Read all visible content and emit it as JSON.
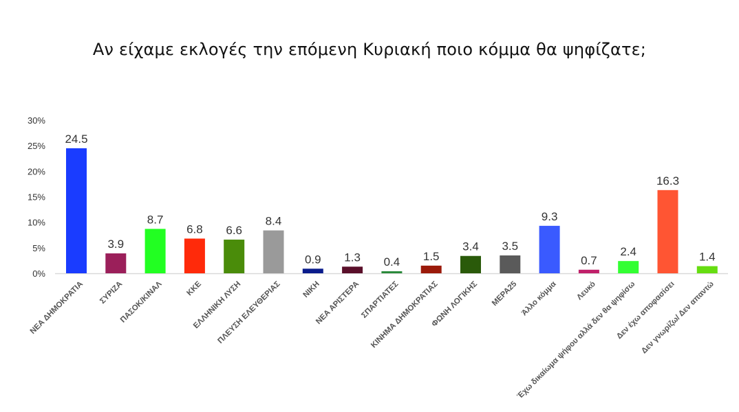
{
  "chart_data": {
    "type": "bar",
    "title": "Αν είχαμε εκλογές την επόμενη Κυριακή ποιο κόμμα θα ψηφίζατε;",
    "xlabel": "",
    "ylabel": "",
    "ylim": [
      0,
      30
    ],
    "yticks": [
      0,
      5,
      10,
      15,
      20,
      25,
      30
    ],
    "ytick_labels": [
      "0%",
      "5%",
      "10%",
      "15%",
      "20%",
      "25%",
      "30%"
    ],
    "grid": false,
    "categories": [
      "ΝΕΑ ΔΗΜΟΚΡΑΤΙΑ",
      "ΣΥΡΙΖΑ",
      "ΠΑΣΟΚ/ΚΙΝΑΛ",
      "ΚΚΕ",
      "ΕΛΛΗΝΙΚΗ ΛΥΣΗ",
      "ΠΛΕΥΣΗ ΕΛΕΥΘΕΡΙΑΣ",
      "ΝΙΚΗ",
      "ΝΕΑ ΑΡΙΣΤΕΡΑ",
      "ΣΠΑΡΤΙΑΤΕΣ",
      "ΚΙΝΗΜΑ ΔΗΜΟΚΡΑΤΙΑΣ",
      "ΦΩΝΗ ΛΟΓΙΚΗΣ",
      "ΜΕΡΑ25",
      "Άλλο κόμμα",
      "Λευκό",
      "Έχω δικαίωμα ψήφου αλλά δεν θα ψηφίσω",
      "Δεν έχω αποφασίσει",
      "Δεν γνωρίζω/ Δεν απαντώ"
    ],
    "values": [
      24.5,
      3.9,
      8.7,
      6.8,
      6.6,
      8.4,
      0.9,
      1.3,
      0.4,
      1.5,
      3.4,
      3.5,
      9.3,
      0.7,
      2.4,
      16.3,
      1.4
    ],
    "value_labels": [
      "24.5",
      "3.9",
      "8.7",
      "6.8",
      "6.6",
      "8.4",
      "0.9",
      "1.3",
      "0.4",
      "1.5",
      "3.4",
      "3.5",
      "9.3",
      "0.7",
      "2.4",
      "16.3",
      "1.4"
    ],
    "colors": [
      "#1a3cff",
      "#9b1f5a",
      "#22ff22",
      "#ff2a0a",
      "#4a8c0a",
      "#9a9a9a",
      "#0a1c8c",
      "#5a0f2a",
      "#2a8a3a",
      "#9b1a0a",
      "#2a5a0a",
      "#5a5a5a",
      "#3a5aff",
      "#c0206a",
      "#33ff33",
      "#ff5533",
      "#66dd11"
    ]
  }
}
